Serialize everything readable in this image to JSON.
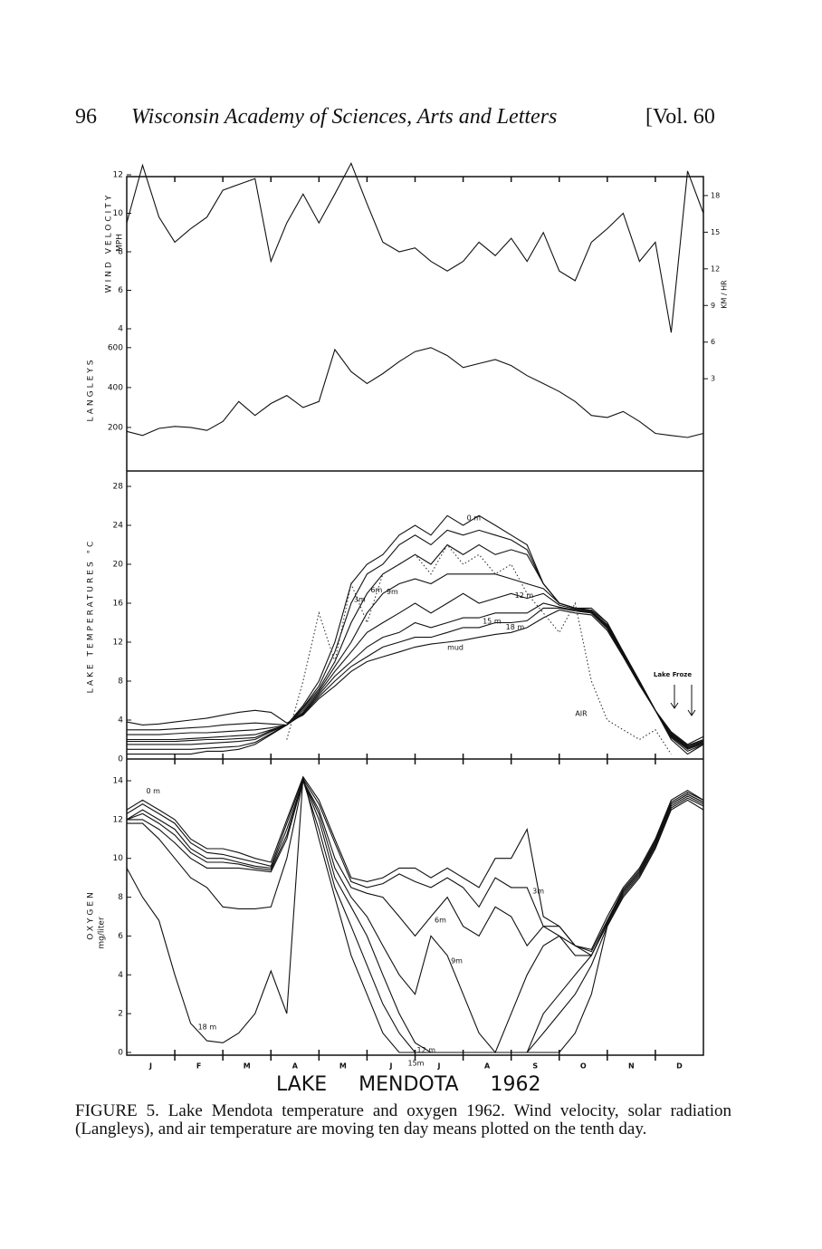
{
  "header": {
    "page": "96",
    "title": "Wisconsin Academy of Sciences, Arts and Letters",
    "volume": "[Vol. 60"
  },
  "figure": {
    "months": [
      "J",
      "F",
      "M",
      "A",
      "M",
      "J",
      "J",
      "A",
      "S",
      "O",
      "N",
      "D"
    ],
    "title": "LAKE MENDOTA 1962"
  },
  "chart_data": [
    {
      "type": "line",
      "ylabel": "WIND VELOCITY",
      "ylabel_unit": "MPH",
      "y2label": "KM / HR",
      "color": "#111",
      "x": [
        0,
        0.33,
        0.67,
        1,
        1.33,
        1.67,
        2,
        2.33,
        2.67,
        3,
        3.33,
        3.67,
        4,
        4.33,
        4.67,
        5,
        5.33,
        5.67,
        6,
        6.33,
        6.67,
        7,
        7.33,
        7.67,
        8,
        8.33,
        8.67,
        9,
        9.33,
        9.67,
        10,
        10.33,
        10.67,
        11,
        11.33,
        11.67,
        12
      ],
      "values": [
        9.5,
        12.5,
        9.8,
        8.5,
        9.2,
        9.8,
        11.2,
        11.5,
        11.8,
        7.5,
        9.5,
        11,
        9.5,
        11,
        12.6,
        10.5,
        8.5,
        8,
        8.2,
        7.5,
        7,
        7.5,
        8.5,
        7.8,
        8.7,
        7.5,
        9,
        7,
        6.5,
        8.5,
        9.2,
        10,
        7.5,
        8.5,
        3.8,
        12.2,
        10
      ],
      "xlim": [
        0,
        12
      ],
      "xticks": [
        1,
        2,
        3,
        4,
        5,
        6,
        7,
        8,
        9,
        10,
        11
      ],
      "ylim": [
        -0.5,
        12
      ],
      "yticks": [
        4,
        6,
        8,
        10,
        12
      ],
      "y2lim": [
        0,
        19.7
      ],
      "y2ticks": [
        3,
        6,
        9,
        12,
        15,
        18
      ]
    },
    {
      "type": "line",
      "ylabel": "LANGLEYS",
      "color": "#111",
      "x": [
        0,
        0.33,
        0.67,
        1,
        1.33,
        1.67,
        2,
        2.33,
        2.67,
        3,
        3.33,
        3.67,
        4,
        4.33,
        4.67,
        5,
        5.33,
        5.67,
        6,
        6.33,
        6.67,
        7,
        7.33,
        7.67,
        8,
        8.33,
        8.67,
        9,
        9.33,
        9.67,
        10,
        10.33,
        10.67,
        11,
        11.33,
        11.67,
        12
      ],
      "values": [
        180,
        160,
        195,
        205,
        200,
        185,
        230,
        330,
        260,
        320,
        360,
        300,
        330,
        590,
        480,
        420,
        470,
        530,
        580,
        600,
        560,
        500,
        520,
        540,
        510,
        460,
        420,
        380,
        330,
        260,
        250,
        280,
        230,
        170,
        160,
        150,
        170
      ],
      "xlim": [
        0,
        12
      ],
      "ylim": [
        0,
        640
      ],
      "yticks": [
        200,
        400,
        600
      ]
    },
    {
      "type": "line",
      "ylabel": "LAKE TEMPERATURES °C",
      "annotation": "Lake Froze",
      "x": [
        0,
        0.33,
        0.67,
        1,
        1.33,
        1.67,
        2,
        2.33,
        2.67,
        3,
        3.33,
        3.67,
        4,
        4.33,
        4.67,
        5,
        5.33,
        5.67,
        6,
        6.33,
        6.67,
        7,
        7.33,
        7.67,
        8,
        8.33,
        8.67,
        9,
        9.33,
        9.67,
        10,
        10.33,
        10.67,
        11,
        11.33,
        11.67,
        12
      ],
      "xlim": [
        0,
        12
      ],
      "xticks": [
        1,
        2,
        3,
        4,
        5,
        6,
        7,
        8,
        9,
        10,
        11
      ],
      "ylim": [
        0,
        28
      ],
      "yticks": [
        0,
        4,
        8,
        12,
        16,
        20,
        24,
        28
      ],
      "series": [
        {
          "name": "0 m",
          "color": "#111",
          "values": [
            0.5,
            0.5,
            0.5,
            0.5,
            0.5,
            0.8,
            0.8,
            1,
            1.5,
            2.5,
            3.5,
            5.5,
            8,
            12,
            18,
            20,
            21,
            23,
            24,
            23,
            25,
            24,
            25,
            24,
            23,
            22,
            18,
            16,
            15.5,
            15.5,
            14,
            11,
            8,
            5,
            2,
            0.5,
            1.5
          ]
        },
        {
          "name": "3m",
          "color": "#111",
          "values": [
            1,
            1,
            1,
            1,
            1,
            1.1,
            1.2,
            1.3,
            1.7,
            2.6,
            3.5,
            5.3,
            7.5,
            11,
            16,
            19,
            20,
            22,
            23,
            22,
            23.5,
            23,
            23.5,
            23,
            22.5,
            21.5,
            18,
            16,
            15.5,
            15.3,
            14,
            11,
            8,
            5,
            2.2,
            0.8,
            1.5
          ]
        },
        {
          "name": "6m",
          "color": "#111",
          "values": [
            1.5,
            1.5,
            1.5,
            1.5,
            1.5,
            1.6,
            1.7,
            1.8,
            2,
            2.8,
            3.5,
            5.2,
            7.2,
            10,
            14,
            17,
            19,
            20,
            21,
            20,
            22,
            21,
            22,
            21,
            21.5,
            21,
            18,
            16,
            15.5,
            15.2,
            13.8,
            11,
            8,
            5,
            2.3,
            1,
            1.6
          ]
        },
        {
          "name": "9m",
          "color": "#111",
          "values": [
            1.8,
            1.8,
            1.8,
            1.8,
            1.9,
            2,
            2,
            2.1,
            2.2,
            2.9,
            3.5,
            5,
            7,
            9.5,
            12,
            15,
            17,
            18,
            18.5,
            18,
            19,
            19,
            19,
            19,
            18.5,
            18,
            17.5,
            16,
            15.5,
            15.1,
            13.7,
            10.9,
            8,
            5,
            2.4,
            1.1,
            1.7
          ]
        },
        {
          "name": "12 m",
          "color": "#111",
          "values": [
            2,
            2,
            2,
            2,
            2.1,
            2.2,
            2.3,
            2.4,
            2.5,
            3,
            3.5,
            4.8,
            6.8,
            9,
            11,
            13,
            14,
            15,
            16,
            15,
            16,
            17,
            16,
            16.5,
            17,
            16.5,
            17,
            15.8,
            15.4,
            15,
            13.6,
            10.8,
            7.9,
            5,
            2.5,
            1.2,
            1.8
          ]
        },
        {
          "name": "15 m",
          "color": "#111",
          "values": [
            2.5,
            2.5,
            2.5,
            2.6,
            2.7,
            2.7,
            2.8,
            2.9,
            3,
            3.2,
            3.5,
            4.7,
            6.6,
            8.5,
            10,
            11.5,
            12.5,
            13,
            14,
            13.5,
            14,
            14.5,
            14.5,
            15,
            15,
            15,
            16,
            15.6,
            15.3,
            15,
            13.5,
            10.7,
            7.8,
            5,
            2.6,
            1.3,
            1.9
          ]
        },
        {
          "name": "18 m",
          "color": "#111",
          "values": [
            3,
            3,
            3,
            3.1,
            3.2,
            3.3,
            3.5,
            3.6,
            3.7,
            3.6,
            3.5,
            4.6,
            6.4,
            8,
            9.5,
            10.5,
            11.5,
            12,
            12.5,
            12.5,
            13,
            13.5,
            13.5,
            14,
            14,
            14.2,
            15.5,
            15.5,
            15.2,
            15,
            13.4,
            10.6,
            7.7,
            5,
            2.7,
            1.4,
            2
          ]
        },
        {
          "name": "mud",
          "color": "#111",
          "values": [
            3.8,
            3.5,
            3.6,
            3.8,
            4,
            4.2,
            4.5,
            4.8,
            5,
            4.8,
            3.7,
            4.5,
            6.2,
            7.5,
            9,
            10,
            10.5,
            11,
            11.5,
            11.8,
            12,
            12.2,
            12.5,
            12.8,
            13,
            13.5,
            14.5,
            15.3,
            15,
            14.8,
            13.2,
            10.5,
            7.6,
            5,
            2.8,
            1.5,
            2.3
          ]
        },
        {
          "name": "AIR",
          "color": "#333",
          "dotted": true,
          "values": [
            null,
            null,
            null,
            null,
            null,
            null,
            null,
            null,
            null,
            null,
            2,
            8,
            15,
            10,
            18,
            14,
            19,
            20,
            21,
            19,
            22,
            20,
            21,
            19,
            20,
            17,
            15,
            13,
            16,
            8,
            4,
            3,
            2,
            3,
            0.5,
            null,
            null
          ]
        }
      ]
    },
    {
      "type": "line",
      "ylabel": "OXYGEN",
      "ylabel_unit": "mg/liter",
      "x": [
        0,
        0.33,
        0.67,
        1,
        1.33,
        1.67,
        2,
        2.33,
        2.67,
        3,
        3.33,
        3.67,
        4,
        4.33,
        4.67,
        5,
        5.33,
        5.67,
        6,
        6.33,
        6.67,
        7,
        7.33,
        7.67,
        8,
        8.33,
        8.67,
        9,
        9.33,
        9.67,
        10,
        10.33,
        10.67,
        11,
        11.33,
        11.67,
        12
      ],
      "xlim": [
        0,
        12
      ],
      "xticks": [
        1,
        2,
        3,
        4,
        5,
        6,
        7,
        8,
        9,
        10,
        11
      ],
      "ylim": [
        0,
        14
      ],
      "yticks": [
        0,
        2,
        4,
        6,
        8,
        10,
        12,
        14
      ],
      "series": [
        {
          "name": "0 m",
          "color": "#111",
          "values": [
            12.5,
            13,
            12.5,
            12,
            11,
            10.5,
            10.5,
            10.3,
            10,
            9.8,
            12,
            14.2,
            13,
            11,
            9,
            8.8,
            9,
            9.5,
            9.5,
            9,
            9.5,
            9,
            8.5,
            10,
            10,
            11.5,
            7,
            6.5,
            5.5,
            5.3,
            7,
            8.5,
            9.5,
            11,
            13,
            13.5,
            13
          ]
        },
        {
          "name": "3m",
          "color": "#111",
          "values": [
            12.3,
            12.8,
            12.3,
            11.8,
            10.8,
            10.3,
            10.2,
            10,
            9.8,
            9.6,
            11.8,
            14.1,
            12.8,
            10.8,
            8.8,
            8.5,
            8.7,
            9.2,
            8.8,
            8.5,
            9,
            8.5,
            7.5,
            9,
            8.5,
            8.5,
            6.5,
            6,
            5.5,
            5.2,
            6.8,
            8.4,
            9.4,
            10.9,
            12.9,
            13.4,
            13
          ]
        },
        {
          "name": "6m",
          "color": "#111",
          "values": [
            12,
            12.5,
            12,
            11.5,
            10.5,
            10,
            10,
            9.8,
            9.6,
            9.5,
            11.5,
            14,
            12.5,
            10,
            8.5,
            8.2,
            8,
            7,
            6,
            7,
            8,
            6.5,
            6,
            7.5,
            7,
            5.5,
            6.5,
            6.5,
            5.5,
            5,
            6.7,
            8.3,
            9.3,
            10.8,
            12.8,
            13.3,
            12.9
          ]
        },
        {
          "name": "9m",
          "color": "#111",
          "values": [
            12,
            12.3,
            11.8,
            11.2,
            10.3,
            9.8,
            9.8,
            9.7,
            9.5,
            9.4,
            11.2,
            14,
            12.3,
            9.5,
            8,
            7,
            5.5,
            4,
            3,
            6,
            5,
            3,
            1,
            0,
            2,
            4,
            5.5,
            6,
            5,
            5,
            6.7,
            8.3,
            9.3,
            10.8,
            12.8,
            13.3,
            12.9
          ]
        },
        {
          "name": "12 m",
          "color": "#111",
          "values": [
            12,
            12,
            11.5,
            10.8,
            10,
            9.5,
            9.5,
            9.5,
            9.4,
            9.3,
            11,
            14,
            12,
            9,
            7.5,
            6,
            4,
            2,
            0.5,
            0,
            0,
            0,
            0,
            0,
            0,
            0,
            2,
            3,
            4,
            5,
            6.6,
            8.2,
            9.2,
            10.7,
            12.7,
            13.2,
            12.8
          ]
        },
        {
          "name": "15m",
          "color": "#111",
          "values": [
            11.8,
            11.8,
            11,
            10,
            9,
            8.5,
            7.5,
            7.4,
            7.4,
            7.5,
            10,
            14,
            11.5,
            8.5,
            6.5,
            4.5,
            2.5,
            1,
            0,
            0,
            0,
            0,
            0,
            0,
            0,
            0,
            1,
            2,
            3,
            4.5,
            6.5,
            8.1,
            9.1,
            10.6,
            12.6,
            13.1,
            12.7
          ]
        },
        {
          "name": "18 m",
          "color": "#111",
          "values": [
            9.5,
            8,
            6.8,
            4,
            1.5,
            0.6,
            0.5,
            1,
            2,
            4.2,
            2,
            14.2,
            11,
            8,
            5,
            3,
            1,
            0,
            0,
            0,
            0,
            0,
            0,
            0,
            0,
            0,
            0,
            0,
            1,
            3,
            6.5,
            8,
            9,
            10.5,
            12.5,
            13,
            12.5
          ]
        }
      ]
    }
  ],
  "caption": {
    "label": "FIGURE 5.",
    "text": "Lake Mendota temperature and oxygen 1962. Wind velocity, solar radiation (Langleys), and air temperature are moving ten day means plotted on the tenth day."
  }
}
